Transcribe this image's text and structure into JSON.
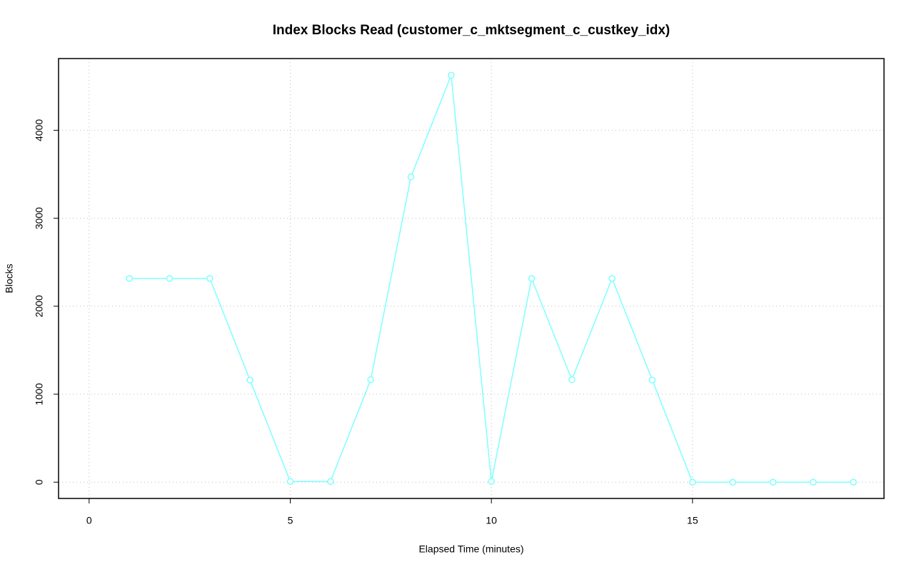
{
  "chart_data": {
    "type": "line",
    "title": "Index Blocks Read (customer_c_mktsegment_c_custkey_idx)",
    "xlabel": "Elapsed Time (minutes)",
    "ylabel": "Blocks",
    "x": [
      1,
      2,
      3,
      4,
      5,
      6,
      7,
      8,
      9,
      10,
      11,
      12,
      13,
      14,
      15,
      16,
      17,
      18,
      19
    ],
    "series": [
      {
        "color": "#7fffff",
        "values": [
          2315,
          2315,
          2315,
          1160,
          8,
          8,
          1165,
          3470,
          4625,
          8,
          2315,
          1165,
          2315,
          1160,
          0,
          0,
          0,
          0,
          0
        ]
      }
    ],
    "xlim": [
      -0.76,
      19.76
    ],
    "xticks": [
      0,
      5,
      10,
      15
    ],
    "ylim": [
      -185,
      4815
    ],
    "yticks": [
      0,
      1000,
      2000,
      3000,
      4000
    ],
    "grid": true
  }
}
